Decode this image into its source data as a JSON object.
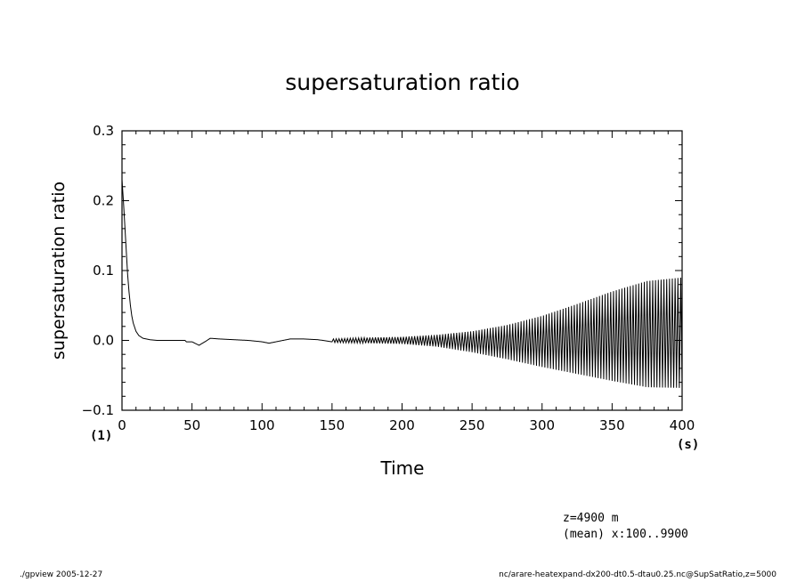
{
  "chart_data": {
    "type": "line",
    "title": "supersaturation ratio",
    "xlabel": "Time",
    "ylabel": "supersaturation ratio",
    "x_unit": "(s)",
    "y_unit": "(1)",
    "xlim": [
      0,
      400
    ],
    "ylim": [
      -0.1,
      0.3
    ],
    "x_ticks": [
      0,
      50,
      100,
      150,
      200,
      250,
      300,
      350,
      400
    ],
    "x_tick_labels": [
      "0",
      "50",
      "100",
      "150",
      "200",
      "250",
      "300",
      "350",
      "400"
    ],
    "y_ticks": [
      -0.1,
      0.0,
      0.1,
      0.2,
      0.3
    ],
    "y_tick_labels": [
      "−0.1",
      "0.0",
      "0.1",
      "0.2",
      "0.3"
    ],
    "grid": false,
    "legend": "none",
    "series": [
      {
        "style": "black line, oscillating with growing amplitude after t≈200 s",
        "decay": {
          "x": [
            0,
            1,
            2,
            3,
            4,
            5,
            6,
            7,
            8,
            10,
            12,
            15,
            20,
            25,
            30,
            40,
            45
          ],
          "y": [
            0.23,
            0.2,
            0.165,
            0.13,
            0.095,
            0.07,
            0.05,
            0.035,
            0.025,
            0.013,
            0.007,
            0.003,
            0.001,
            0.0,
            0.0,
            0.0,
            0.0
          ]
        },
        "features": {
          "x": [
            50,
            55,
            60,
            63,
            70,
            80,
            90,
            100,
            105,
            110,
            120,
            130,
            140,
            150,
            155,
            160,
            170,
            180,
            190,
            200
          ],
          "y": [
            -0.002,
            -0.007,
            -0.001,
            0.003,
            0.002,
            0.001,
            0.0,
            -0.002,
            -0.004,
            -0.002,
            0.002,
            0.002,
            0.001,
            -0.002,
            -0.004,
            0.0,
            0.003,
            0.003,
            0.002,
            0.001
          ]
        },
        "envelope_upper": {
          "x": [
            150,
            175,
            200,
            225,
            250,
            275,
            300,
            325,
            350,
            375,
            400
          ],
          "y": [
            0.002,
            0.004,
            0.005,
            0.008,
            0.013,
            0.022,
            0.035,
            0.052,
            0.07,
            0.085,
            0.09
          ]
        },
        "envelope_lower": {
          "x": [
            150,
            175,
            200,
            225,
            250,
            275,
            300,
            325,
            350,
            375,
            400
          ],
          "y": [
            -0.003,
            -0.004,
            -0.005,
            -0.009,
            -0.017,
            -0.027,
            -0.038,
            -0.048,
            -0.058,
            -0.067,
            -0.068
          ]
        },
        "oscillation_period_s": 2
      }
    ]
  },
  "footer": {
    "annotation_line1": "z=4900  m",
    "annotation_line2": "(mean) x:100..9900",
    "left": "./gpview  2005-12-27",
    "right": "nc/arare-heatexpand-dx200-dt0.5-dtau0.25.nc@SupSatRatio,z=5000"
  }
}
